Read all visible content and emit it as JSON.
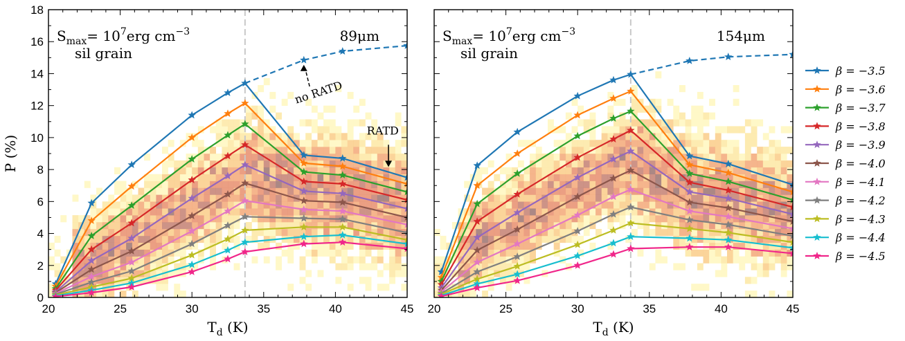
{
  "chart_data": [
    {
      "type": "line",
      "panel": "left",
      "xlabel": "T_d (K)",
      "ylabel": "P (%)",
      "xlim": [
        20,
        45
      ],
      "ylim": [
        0,
        18
      ],
      "xticks": [
        "20",
        "25",
        "30",
        "35",
        "40",
        "45"
      ],
      "yticks": [
        "0",
        "2",
        "4",
        "6",
        "8",
        "10",
        "12",
        "14",
        "16",
        "18"
      ],
      "annotation_smax": "S",
      "annotation_smax_sub": "max",
      "annotation_smax_val": "= 10",
      "annotation_smax_exp": "7",
      "annotation_smax_unit": "erg cm",
      "annotation_smax_unit_exp": "−3",
      "annotation_grain": "sil grain",
      "annotation_wavelength": "89μm",
      "annotation_no_ratd": "no RATD",
      "annotation_ratd": "RATD",
      "vline_x": 33.7,
      "no_ratd_x": [
        33.7,
        37.8,
        40.5,
        45
      ],
      "no_ratd_y": [
        13.4,
        14.85,
        15.4,
        15.75
      ],
      "x": [
        20.5,
        23,
        25.8,
        30,
        32.5,
        33.7,
        37.8,
        40.5,
        45
      ],
      "series": [
        {
          "name": "β = −3.5",
          "color": "#1f77b4",
          "values": [
            0.85,
            5.9,
            8.3,
            11.4,
            12.8,
            13.4,
            8.9,
            8.7,
            7.5
          ]
        },
        {
          "name": "β = −3.6",
          "color": "#ff7f0e",
          "values": [
            0.7,
            4.8,
            6.95,
            10.0,
            11.5,
            12.15,
            8.4,
            8.2,
            7.1
          ]
        },
        {
          "name": "β = −3.7",
          "color": "#2ca02c",
          "values": [
            0.55,
            3.85,
            5.75,
            8.65,
            10.15,
            10.85,
            7.85,
            7.65,
            6.6
          ]
        },
        {
          "name": "β = −3.8",
          "color": "#d62728",
          "values": [
            0.45,
            3.0,
            4.65,
            7.35,
            8.85,
            9.55,
            7.25,
            7.1,
            6.1
          ]
        },
        {
          "name": "β = −3.9",
          "color": "#9467bd",
          "values": [
            0.35,
            2.3,
            3.7,
            6.2,
            7.6,
            8.3,
            6.65,
            6.5,
            5.55
          ]
        },
        {
          "name": "β = −4.0",
          "color": "#8c564b",
          "values": [
            0.3,
            1.75,
            2.9,
            5.1,
            6.45,
            7.15,
            6.05,
            5.95,
            5.0
          ]
        },
        {
          "name": "β = −4.1",
          "color": "#e377c2",
          "values": [
            0.25,
            1.3,
            2.2,
            4.15,
            5.4,
            6.05,
            5.5,
            5.4,
            4.55
          ]
        },
        {
          "name": "β = −4.2",
          "color": "#7f7f7f",
          "values": [
            0.2,
            0.95,
            1.65,
            3.35,
            4.5,
            5.05,
            4.95,
            4.9,
            4.05
          ]
        },
        {
          "name": "β = −4.3",
          "color": "#bcbd22",
          "values": [
            0.15,
            0.65,
            1.2,
            2.65,
            3.65,
            4.2,
            4.4,
            4.4,
            3.6
          ]
        },
        {
          "name": "β = −4.4",
          "color": "#17becf",
          "values": [
            0.1,
            0.45,
            0.9,
            2.05,
            2.95,
            3.45,
            3.8,
            3.9,
            3.35
          ]
        },
        {
          "name": "β = −4.5",
          "color": "#f0268a",
          "values": [
            0.05,
            0.3,
            0.65,
            1.6,
            2.4,
            2.85,
            3.35,
            3.45,
            3.05
          ]
        }
      ]
    },
    {
      "type": "line",
      "panel": "right",
      "xlabel": "T_d (K)",
      "ylabel": "",
      "xlim": [
        20,
        45
      ],
      "ylim": [
        0,
        18
      ],
      "xticks": [
        "20",
        "25",
        "30",
        "35",
        "40",
        "45"
      ],
      "annotation_smax": "S",
      "annotation_smax_sub": "max",
      "annotation_smax_val": "= 10",
      "annotation_smax_exp": "7",
      "annotation_smax_unit": "erg cm",
      "annotation_smax_unit_exp": "−3",
      "annotation_grain": "sil grain",
      "annotation_wavelength": "154μm",
      "vline_x": 33.7,
      "no_ratd_x": [
        33.7,
        37.8,
        40.5,
        45
      ],
      "no_ratd_y": [
        13.95,
        14.8,
        15.05,
        15.2
      ],
      "x": [
        20.5,
        23,
        25.8,
        30,
        32.5,
        33.7,
        37.8,
        40.5,
        45
      ],
      "series": [
        {
          "name": "β = −3.5",
          "color": "#1f77b4",
          "values": [
            1.6,
            8.25,
            10.35,
            12.6,
            13.6,
            13.95,
            8.85,
            8.35,
            7.05
          ]
        },
        {
          "name": "β = −3.6",
          "color": "#ff7f0e",
          "values": [
            1.25,
            7.0,
            9.0,
            11.4,
            12.45,
            12.9,
            8.3,
            7.8,
            6.6
          ]
        },
        {
          "name": "β = −3.7",
          "color": "#2ca02c",
          "values": [
            1.0,
            5.85,
            7.75,
            10.1,
            11.2,
            11.65,
            7.75,
            7.25,
            6.1
          ]
        },
        {
          "name": "β = −3.8",
          "color": "#d62728",
          "values": [
            0.8,
            4.75,
            6.45,
            8.75,
            9.9,
            10.45,
            7.2,
            6.7,
            5.65
          ]
        },
        {
          "name": "β = −3.9",
          "color": "#9467bd",
          "values": [
            0.6,
            3.75,
            5.3,
            7.5,
            8.65,
            9.15,
            6.6,
            6.2,
            5.2
          ]
        },
        {
          "name": "β = −4.0",
          "color": "#8c564b",
          "values": [
            0.45,
            2.95,
            4.25,
            6.3,
            7.45,
            7.95,
            5.95,
            5.6,
            4.75
          ]
        },
        {
          "name": "β = −4.1",
          "color": "#e377c2",
          "values": [
            0.35,
            2.2,
            3.35,
            5.15,
            6.3,
            6.75,
            5.4,
            5.05,
            4.3
          ]
        },
        {
          "name": "β = −4.2",
          "color": "#7f7f7f",
          "values": [
            0.25,
            1.6,
            2.55,
            4.15,
            5.2,
            5.65,
            4.85,
            4.55,
            3.85
          ]
        },
        {
          "name": "β = −4.3",
          "color": "#bcbd22",
          "values": [
            0.2,
            1.15,
            1.95,
            3.3,
            4.2,
            4.65,
            4.3,
            4.05,
            3.45
          ]
        },
        {
          "name": "β = −4.4",
          "color": "#17becf",
          "values": [
            0.12,
            0.85,
            1.45,
            2.6,
            3.4,
            3.8,
            3.7,
            3.6,
            3.1
          ]
        },
        {
          "name": "β = −4.5",
          "color": "#f0268a",
          "values": [
            0.07,
            0.6,
            1.05,
            2.0,
            2.7,
            3.05,
            3.15,
            3.15,
            2.75
          ]
        }
      ]
    }
  ]
}
